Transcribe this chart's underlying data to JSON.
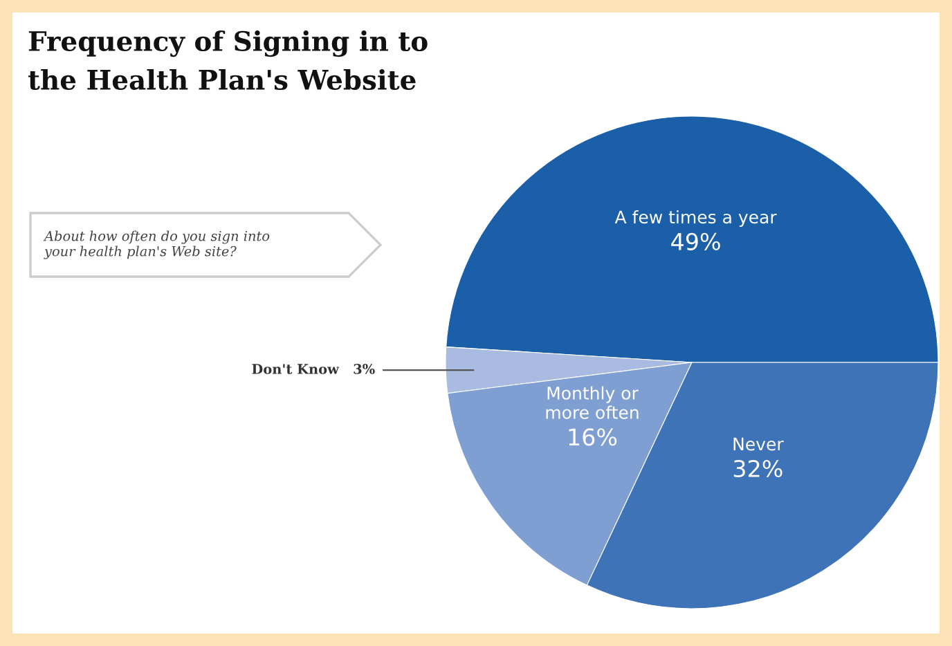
{
  "chart_data": {
    "type": "pie",
    "title": "Frequency of Signing in to\nthe Health Plan's Website",
    "annotations": [
      "About how often do you sign into\nyour health plan's Web site?"
    ],
    "categories": [
      "A few times a year",
      "Don't Know",
      "Monthly or\nmore often",
      "Never"
    ],
    "values": [
      49,
      3,
      16,
      32
    ],
    "value_labels": [
      "49%",
      "3%",
      "16%",
      "32%"
    ],
    "colors": [
      "#1a5fa8",
      "#a9bbe0",
      "#7f9fd3",
      "#3f73b8"
    ],
    "legend": false
  }
}
